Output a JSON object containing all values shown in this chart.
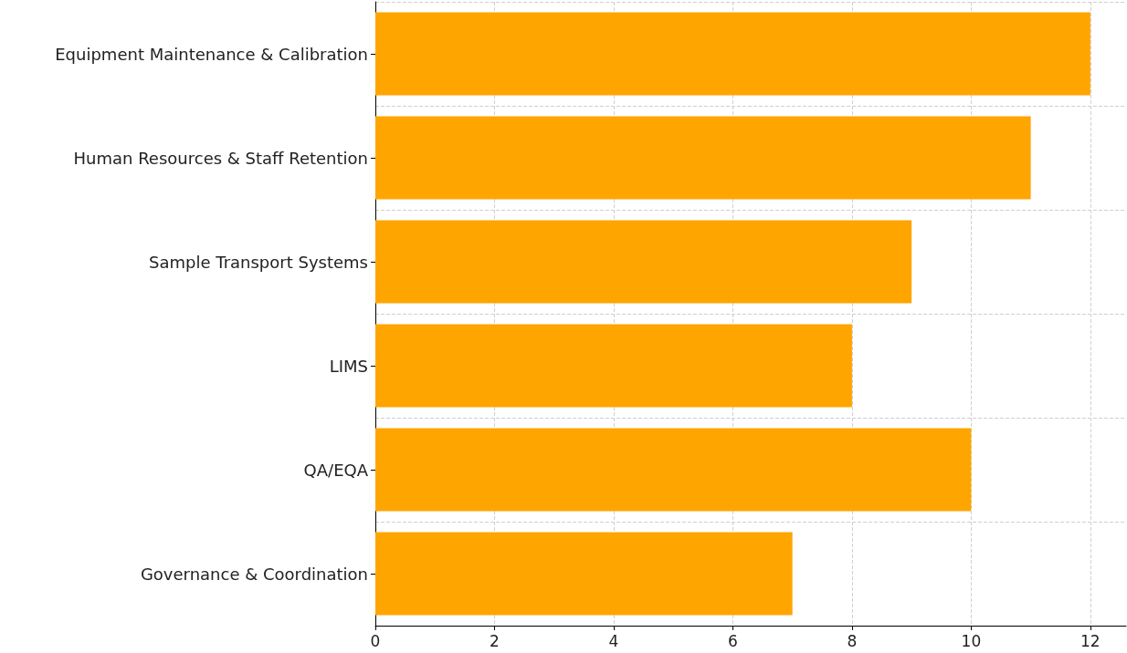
{
  "chart_data": {
    "type": "bar",
    "orientation": "horizontal",
    "categories": [
      "Equipment Maintenance & Calibration",
      "Human Resources & Staff Retention",
      "Sample Transport Systems",
      "LIMS",
      "QA/EQA",
      "Governance & Coordination"
    ],
    "values": [
      12,
      11,
      9,
      8,
      10,
      7
    ],
    "color": "#ffa500",
    "xlim": [
      0,
      12.6
    ],
    "xticks": [
      0,
      2,
      4,
      6,
      8,
      10,
      12
    ],
    "grid": true
  }
}
